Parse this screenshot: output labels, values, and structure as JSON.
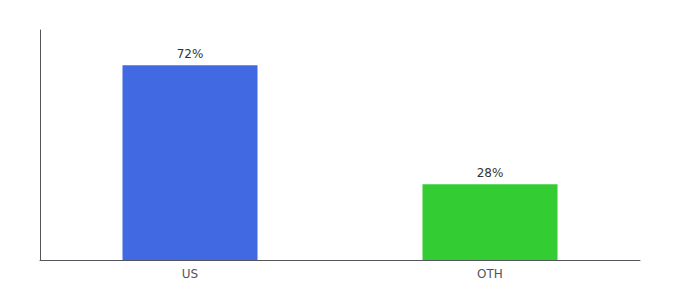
{
  "chart_data": {
    "type": "bar",
    "categories": [
      "US",
      "OTH"
    ],
    "values": [
      72,
      28
    ],
    "value_labels": [
      "72%",
      "28%"
    ],
    "colors": [
      "#4169e1",
      "#33cc33"
    ],
    "ylim": [
      0,
      85
    ],
    "data_labels": true,
    "tick_labels": "x",
    "grid": false
  }
}
